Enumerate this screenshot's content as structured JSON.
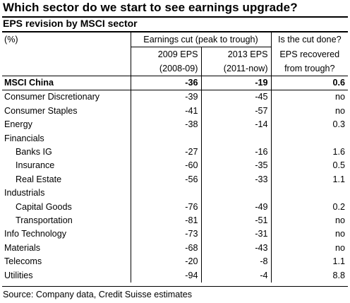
{
  "title": "Which sector do we start to see earnings upgrade?",
  "subtitle": "EPS revision by MSCI sector",
  "header": {
    "unit": "(%)",
    "group_label": "Earnings cut (peak to trough)",
    "col1_line1": "2009 EPS",
    "col1_line2": "(2008-09)",
    "col2_line1": "2013 EPS",
    "col2_line2": "(2011-now)",
    "col3_line1": "Is the cut done?",
    "col3_line2": "EPS recovered",
    "col3_line3": "from trough?"
  },
  "rows": [
    {
      "label": "MSCI China",
      "eps2009": "-36",
      "eps2013": "-19",
      "recovered": "0.6"
    },
    {
      "label": "Consumer Discretionary",
      "eps2009": "-39",
      "eps2013": "-45",
      "recovered": "no"
    },
    {
      "label": "Consumer Staples",
      "eps2009": "-41",
      "eps2013": "-57",
      "recovered": "no"
    },
    {
      "label": "Energy",
      "eps2009": "-38",
      "eps2013": "-14",
      "recovered": "0.3"
    },
    {
      "label": "Financials",
      "eps2009": "",
      "eps2013": "",
      "recovered": ""
    },
    {
      "label": "Banks IG",
      "eps2009": "-27",
      "eps2013": "-16",
      "recovered": "1.6"
    },
    {
      "label": "Insurance",
      "eps2009": "-60",
      "eps2013": "-35",
      "recovered": "0.5"
    },
    {
      "label": "Real Estate",
      "eps2009": "-56",
      "eps2013": "-33",
      "recovered": "1.1"
    },
    {
      "label": "Industrials",
      "eps2009": "",
      "eps2013": "",
      "recovered": ""
    },
    {
      "label": "Capital Goods",
      "eps2009": "-76",
      "eps2013": "-49",
      "recovered": "0.2"
    },
    {
      "label": "Transportation",
      "eps2009": "-81",
      "eps2013": "-51",
      "recovered": "no"
    },
    {
      "label": "Info Technology",
      "eps2009": "-73",
      "eps2013": "-31",
      "recovered": "no"
    },
    {
      "label": "Materials",
      "eps2009": "-68",
      "eps2013": "-43",
      "recovered": "no"
    },
    {
      "label": "Telecoms",
      "eps2009": "-20",
      "eps2013": "-8",
      "recovered": "1.1"
    },
    {
      "label": "Utilities",
      "eps2009": "-94",
      "eps2013": "-4",
      "recovered": "8.8"
    }
  ],
  "source": "Source: Company data, Credit Suisse estimates"
}
